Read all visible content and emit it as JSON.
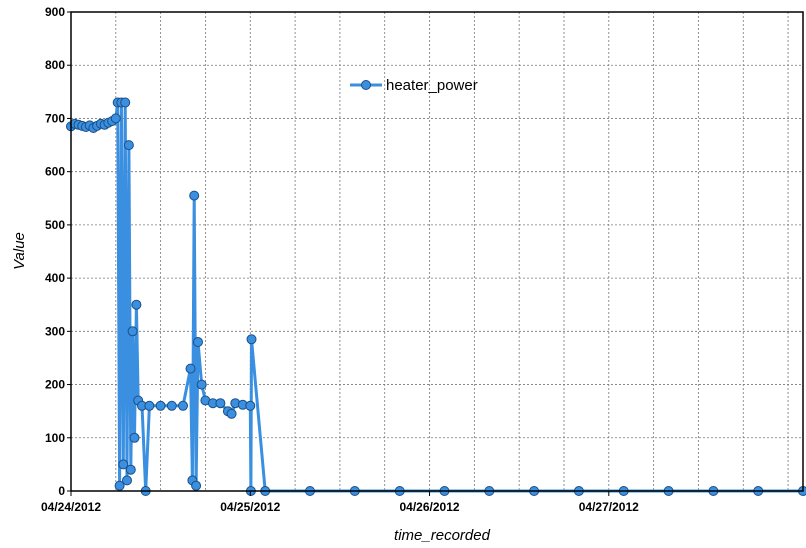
{
  "chart_data": {
    "type": "scatter",
    "title": "",
    "xlabel": "time_recorded",
    "ylabel": "Value",
    "x_ticks": [
      "04/24/2012",
      "04/25/2012",
      "04/26/2012",
      "04/27/2012"
    ],
    "xlim": [
      "2012-04-24T00:00",
      "2012-04-28T02:00"
    ],
    "ylim": [
      0,
      900
    ],
    "y_ticks": [
      0,
      100,
      200,
      300,
      400,
      500,
      600,
      700,
      800,
      900
    ],
    "grid": true,
    "legend": {
      "position": "top-center",
      "entries": [
        "heater_power"
      ]
    },
    "series": [
      {
        "name": "heater_power",
        "color": "#3a8fe0",
        "marker": "circle",
        "points": [
          [
            "2012-04-24T00:00",
            685
          ],
          [
            "2012-04-24T00:30",
            690
          ],
          [
            "2012-04-24T01:00",
            688
          ],
          [
            "2012-04-24T01:30",
            686
          ],
          [
            "2012-04-24T02:00",
            684
          ],
          [
            "2012-04-24T02:30",
            687
          ],
          [
            "2012-04-24T03:00",
            682
          ],
          [
            "2012-04-24T03:30",
            686
          ],
          [
            "2012-04-24T04:00",
            690
          ],
          [
            "2012-04-24T04:30",
            688
          ],
          [
            "2012-04-24T05:00",
            692
          ],
          [
            "2012-04-24T05:30",
            695
          ],
          [
            "2012-04-24T06:00",
            700
          ],
          [
            "2012-04-24T06:15",
            730
          ],
          [
            "2012-04-24T06:30",
            10
          ],
          [
            "2012-04-24T06:45",
            730
          ],
          [
            "2012-04-24T07:00",
            50
          ],
          [
            "2012-04-24T07:15",
            730
          ],
          [
            "2012-04-24T07:30",
            20
          ],
          [
            "2012-04-24T07:45",
            650
          ],
          [
            "2012-04-24T08:00",
            40
          ],
          [
            "2012-04-24T08:15",
            300
          ],
          [
            "2012-04-24T08:30",
            100
          ],
          [
            "2012-04-24T08:45",
            350
          ],
          [
            "2012-04-24T09:00",
            170
          ],
          [
            "2012-04-24T09:30",
            160
          ],
          [
            "2012-04-24T10:00",
            0
          ],
          [
            "2012-04-24T10:30",
            160
          ],
          [
            "2012-04-24T12:00",
            160
          ],
          [
            "2012-04-24T13:30",
            160
          ],
          [
            "2012-04-24T15:00",
            160
          ],
          [
            "2012-04-24T16:00",
            230
          ],
          [
            "2012-04-24T16:15",
            20
          ],
          [
            "2012-04-24T16:30",
            555
          ],
          [
            "2012-04-24T16:45",
            10
          ],
          [
            "2012-04-24T17:00",
            280
          ],
          [
            "2012-04-24T17:30",
            200
          ],
          [
            "2012-04-24T18:00",
            170
          ],
          [
            "2012-04-24T19:00",
            165
          ],
          [
            "2012-04-24T20:00",
            165
          ],
          [
            "2012-04-24T21:00",
            150
          ],
          [
            "2012-04-24T21:30",
            145
          ],
          [
            "2012-04-24T22:00",
            165
          ],
          [
            "2012-04-24T23:00",
            162
          ],
          [
            "2012-04-25T00:00",
            160
          ],
          [
            "2012-04-25T00:05",
            0
          ],
          [
            "2012-04-25T00:10",
            285
          ],
          [
            "2012-04-25T02:00",
            0
          ],
          [
            "2012-04-25T08:00",
            0
          ],
          [
            "2012-04-25T14:00",
            0
          ],
          [
            "2012-04-25T20:00",
            0
          ],
          [
            "2012-04-26T02:00",
            0
          ],
          [
            "2012-04-26T08:00",
            0
          ],
          [
            "2012-04-26T14:00",
            0
          ],
          [
            "2012-04-26T20:00",
            0
          ],
          [
            "2012-04-27T02:00",
            0
          ],
          [
            "2012-04-27T08:00",
            0
          ],
          [
            "2012-04-27T14:00",
            0
          ],
          [
            "2012-04-27T20:00",
            0
          ],
          [
            "2012-04-28T02:00",
            0
          ]
        ]
      }
    ]
  }
}
